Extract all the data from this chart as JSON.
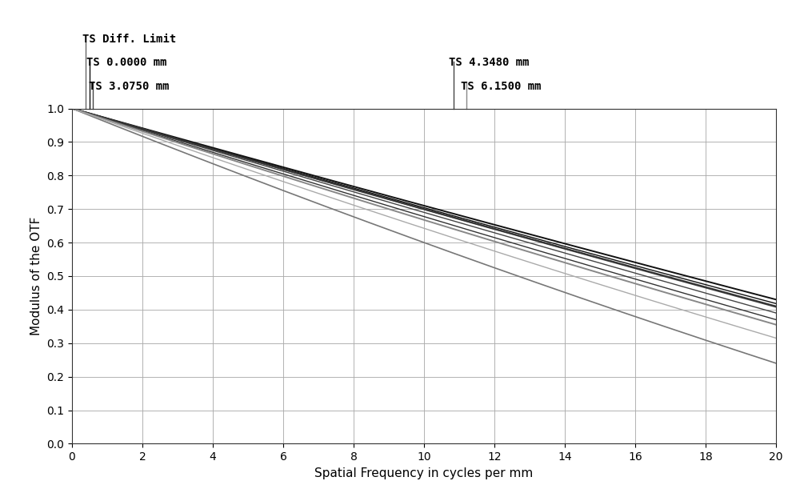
{
  "xlabel": "Spatial Frequency in cycles per mm",
  "ylabel": "Modulus of the OTF",
  "xlim": [
    0,
    20
  ],
  "ylim": [
    0.0,
    1.0
  ],
  "xticks": [
    0,
    2,
    4,
    6,
    8,
    10,
    12,
    14,
    16,
    18,
    20
  ],
  "yticks": [
    0.0,
    0.1,
    0.2,
    0.3,
    0.4,
    0.5,
    0.6,
    0.7,
    0.8,
    0.9,
    1.0
  ],
  "background_color": "#ffffff",
  "grid_color": "#aaaaaa",
  "curves": [
    {
      "end_val": 0.24,
      "curve_f": 0.08,
      "color": "#777777",
      "lw": 1.2
    },
    {
      "end_val": 0.43,
      "curve_f": 0.02,
      "color": "#111111",
      "lw": 1.4
    },
    {
      "end_val": 0.418,
      "curve_f": 0.02,
      "color": "#111111",
      "lw": 1.0
    },
    {
      "end_val": 0.408,
      "curve_f": 0.02,
      "color": "#444444",
      "lw": 1.4
    },
    {
      "end_val": 0.39,
      "curve_f": 0.02,
      "color": "#444444",
      "lw": 1.0
    },
    {
      "end_val": 0.41,
      "curve_f": 0.02,
      "color": "#333333",
      "lw": 1.4
    },
    {
      "end_val": 0.37,
      "curve_f": 0.03,
      "color": "#333333",
      "lw": 1.0
    },
    {
      "end_val": 0.355,
      "curve_f": 0.04,
      "color": "#888888",
      "lw": 1.4
    },
    {
      "end_val": 0.315,
      "curve_f": 0.06,
      "color": "#aaaaaa",
      "lw": 1.0
    }
  ],
  "left_ann": [
    {
      "x_data": 0.38,
      "label": "TS Diff. Limit",
      "color": "#666666",
      "line_height": 0.2
    },
    {
      "x_data": 0.5,
      "label": "TS 0.0000 mm",
      "color": "#111111",
      "line_height": 0.14
    },
    {
      "x_data": 0.6,
      "label": "TS 3.0750 mm",
      "color": "#444444",
      "line_height": 0.08
    }
  ],
  "right_ann": [
    {
      "x_data": 10.85,
      "label": "TS 4.3480 mm",
      "color": "#444444",
      "line_height": 0.14
    },
    {
      "x_data": 11.2,
      "label": "TS 6.1500 mm",
      "color": "#888888",
      "line_height": 0.08
    }
  ],
  "font_size": 10,
  "xlabel_fontsize": 11,
  "ylabel_fontsize": 11
}
